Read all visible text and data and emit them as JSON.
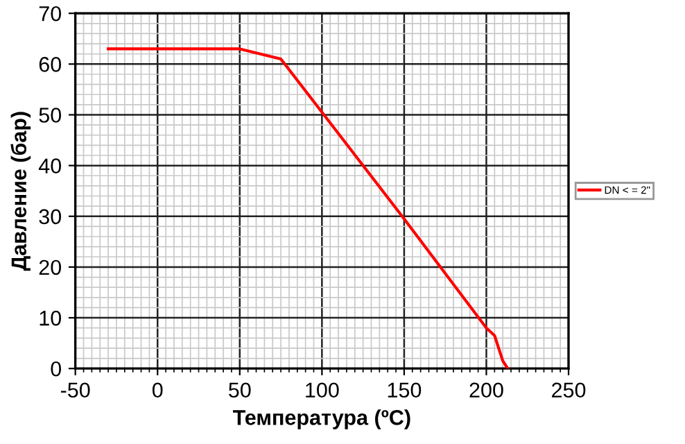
{
  "chart_data": {
    "type": "line",
    "xlabel": "Температура (ºC)",
    "ylabel": "Давление (бар)",
    "xlim": [
      -50,
      250
    ],
    "xticks": [
      -50,
      0,
      50,
      100,
      150,
      200,
      250
    ],
    "ylim": [
      0,
      70
    ],
    "yticks": [
      0,
      10,
      20,
      30,
      40,
      50,
      60,
      70
    ],
    "grid": true,
    "legend": "right",
    "marker": "none",
    "line_style": "solid",
    "series": [
      {
        "name": "DN < = 2\"",
        "color": "#ff0000",
        "x": [
          -30,
          50,
          75,
          100,
          150,
          200,
          205,
          210,
          213
        ],
        "values": [
          63,
          63,
          61,
          50.5,
          29.5,
          8,
          6.5,
          1.5,
          0
        ]
      }
    ]
  }
}
